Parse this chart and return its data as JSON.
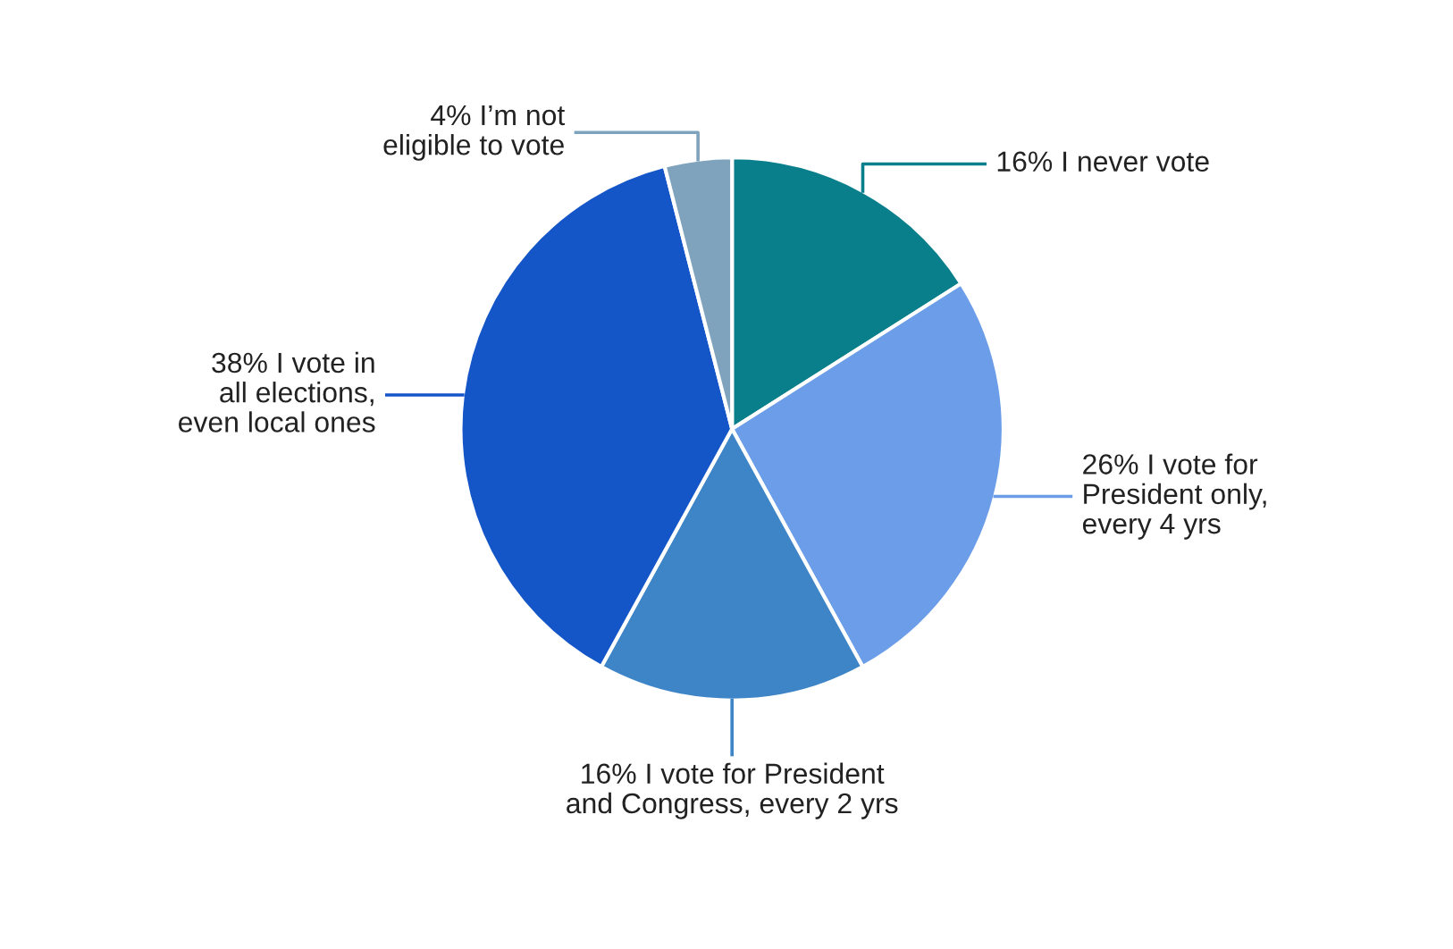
{
  "chart_data": {
    "type": "pie",
    "categories": [
      "I never vote",
      "I vote for\nPresident only,\nevery 4 yrs",
      "I vote for President\nand Congress, every 2 yrs",
      "I vote in\nall elections,\neven local ones",
      "I’m not\neligible to vote"
    ],
    "values": [
      16,
      26,
      16,
      38,
      4
    ],
    "value_labels": [
      "16%",
      "26%",
      "16%",
      "38%",
      "4%"
    ],
    "colors": [
      "#0a7f8c",
      "#6b9de8",
      "#3e85c8",
      "#1455c8",
      "#7fa3bd"
    ]
  }
}
